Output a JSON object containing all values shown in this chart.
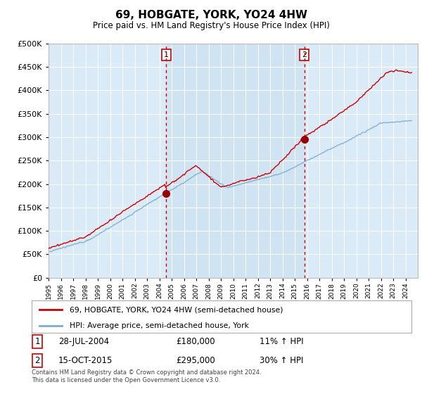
{
  "title": "69, HOBGATE, YORK, YO24 4HW",
  "subtitle": "Price paid vs. HM Land Registry's House Price Index (HPI)",
  "ylim": [
    0,
    500000
  ],
  "yticks": [
    0,
    50000,
    100000,
    150000,
    200000,
    250000,
    300000,
    350000,
    400000,
    450000,
    500000
  ],
  "background_color": "#daeaf7",
  "highlight_color": "#c8dff0",
  "line1_color": "#cc0000",
  "line2_color": "#7aadcf",
  "marker_color": "#990000",
  "vline_color": "#cc0000",
  "sale1_date_num": 2004.57,
  "sale1_price": 180000,
  "sale2_date_num": 2015.79,
  "sale2_price": 295000,
  "legend1": "69, HOBGATE, YORK, YO24 4HW (semi-detached house)",
  "legend2": "HPI: Average price, semi-detached house, York",
  "annotation1_label": "1",
  "annotation1_date": "28-JUL-2004",
  "annotation1_price": "£180,000",
  "annotation1_hpi": "11% ↑ HPI",
  "annotation2_label": "2",
  "annotation2_date": "15-OCT-2015",
  "annotation2_price": "£295,000",
  "annotation2_hpi": "30% ↑ HPI",
  "footer": "Contains HM Land Registry data © Crown copyright and database right 2024.\nThis data is licensed under the Open Government Licence v3.0.",
  "xmin": 1995,
  "xmax": 2025
}
